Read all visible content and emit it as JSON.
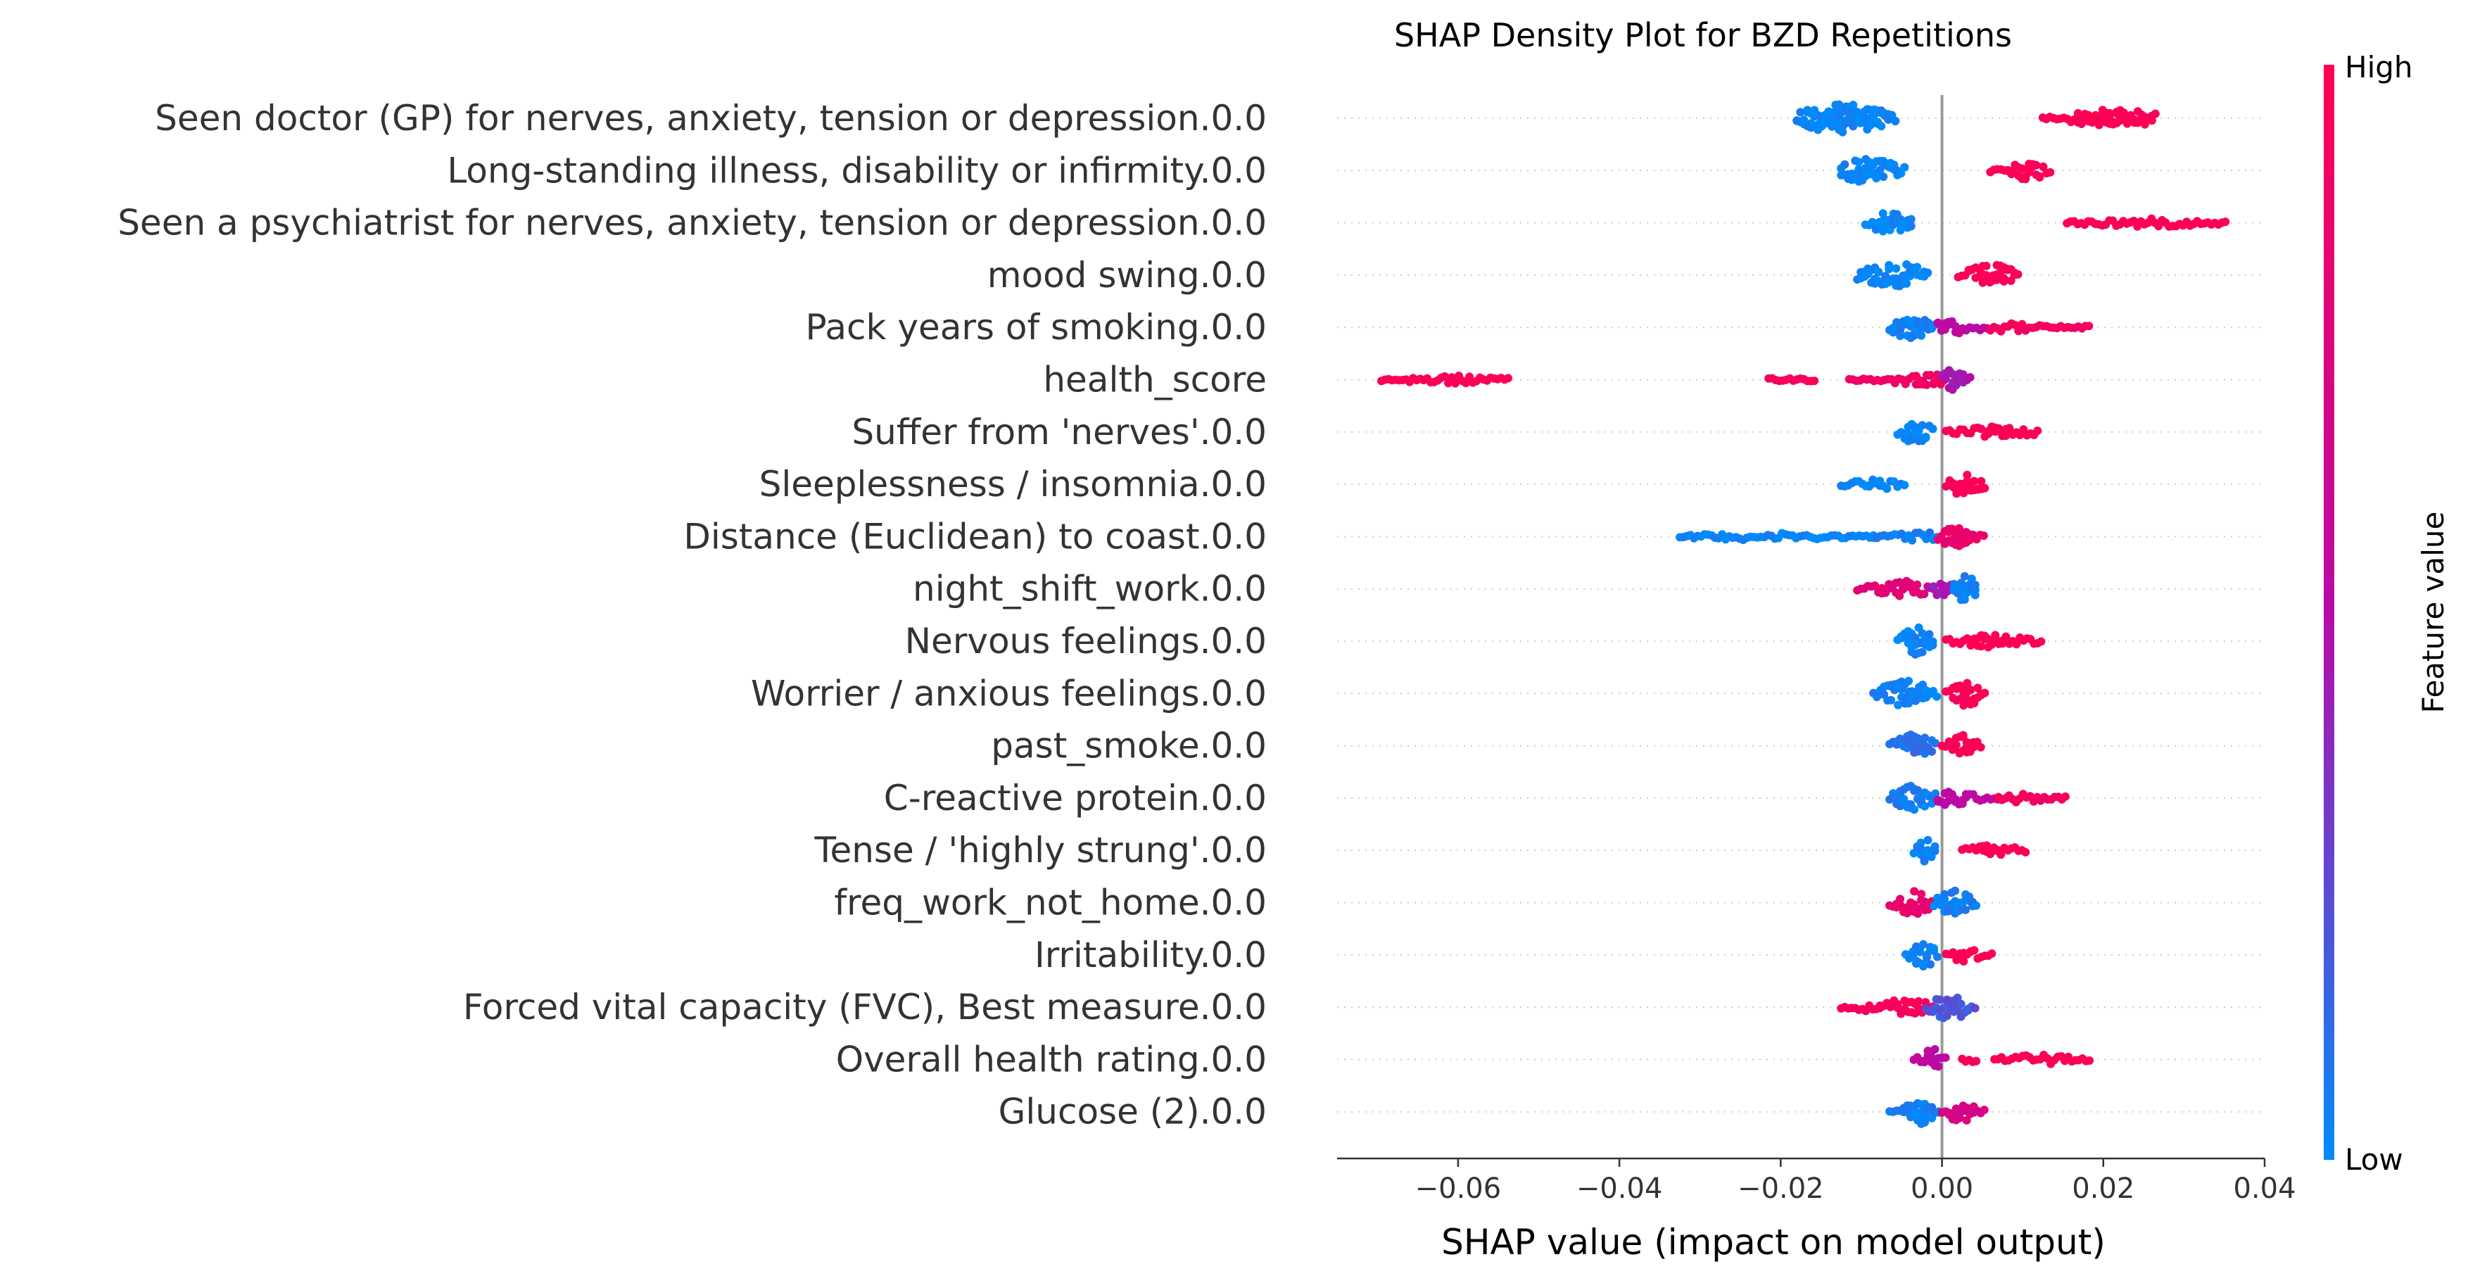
{
  "chart_data": {
    "type": "scatter",
    "title": "SHAP Density Plot for BZD Repetitions",
    "xlabel": "SHAP value (impact on model output)",
    "xlim": [
      -0.075,
      0.04
    ],
    "xticks": [
      -0.06,
      -0.04,
      -0.02,
      0.0,
      0.02,
      0.04
    ],
    "xtick_labels": [
      "−0.06",
      "−0.04",
      "−0.02",
      "0.00",
      "0.02",
      "0.04"
    ],
    "zero_line": 0.0,
    "colorbar": {
      "label": "Feature value",
      "high_label": "High",
      "low_label": "Low",
      "low_color": "#008bfb",
      "mid_color": "#b80aa8",
      "high_color": "#ff0052"
    },
    "features": [
      {
        "name": "Seen doctor (GP) for nerves, anxiety, tension or depression.0.0",
        "clusters": [
          {
            "from": -0.018,
            "to": -0.0055,
            "peak": -0.0125,
            "w": 0.0055,
            "h": 20,
            "f": 0.02
          },
          {
            "from": 0.0125,
            "to": 0.0265,
            "peak": 0.0215,
            "w": 0.0045,
            "h": 13,
            "f": 0.98
          }
        ]
      },
      {
        "name": "Long-standing illness, disability or infirmity.0.0",
        "clusters": [
          {
            "from": -0.0125,
            "to": -0.0045,
            "peak": -0.0092,
            "w": 0.003,
            "h": 17,
            "f": 0.02
          },
          {
            "from": 0.006,
            "to": 0.0135,
            "peak": 0.0105,
            "w": 0.0025,
            "h": 13,
            "f": 0.98
          }
        ]
      },
      {
        "name": "Seen a psychiatrist for nerves, anxiety, tension or depression.0.0",
        "clusters": [
          {
            "from": -0.0095,
            "to": -0.0035,
            "peak": -0.0063,
            "w": 0.0022,
            "h": 15,
            "f": 0.02
          },
          {
            "from": 0.0155,
            "to": 0.0355,
            "peak": 0.025,
            "w": 0.007,
            "h": 6,
            "f": 0.98
          }
        ]
      },
      {
        "name": "mood swing.0.0",
        "clusters": [
          {
            "from": -0.0105,
            "to": -0.0015,
            "peak": -0.006,
            "w": 0.0035,
            "h": 17,
            "f": 0.02
          },
          {
            "from": 0.002,
            "to": 0.0095,
            "peak": 0.0062,
            "w": 0.0025,
            "h": 15,
            "f": 0.98
          }
        ]
      },
      {
        "name": "Pack years of smoking.0.0",
        "clusters": [
          {
            "from": -0.0065,
            "to": -0.0005,
            "peak": -0.0038,
            "w": 0.0018,
            "h": 17,
            "f": 0.05
          },
          {
            "from": -0.0005,
            "to": 0.006,
            "peak": 0.0005,
            "w": 0.0035,
            "h": 9,
            "f": 0.55
          },
          {
            "from": 0.006,
            "to": 0.0185,
            "peak": 0.008,
            "w": 0.004,
            "h": 6,
            "f": 0.92
          }
        ]
      },
      {
        "name": "health_score",
        "clusters": [
          {
            "from": -0.0695,
            "to": -0.0535,
            "peak": -0.061,
            "w": 0.005,
            "h": 6,
            "f": 0.98
          },
          {
            "from": -0.0215,
            "to": -0.0155,
            "peak": -0.019,
            "w": 0.002,
            "h": 4,
            "f": 0.95
          },
          {
            "from": -0.0115,
            "to": 0.0005,
            "peak": -0.002,
            "w": 0.004,
            "h": 8,
            "f": 0.9
          },
          {
            "from": 0.0,
            "to": 0.0035,
            "peak": 0.0015,
            "w": 0.0012,
            "h": 16,
            "f": 0.45
          }
        ]
      },
      {
        "name": "Suffer from 'nerves'.0.0",
        "clusters": [
          {
            "from": -0.0055,
            "to": -0.001,
            "peak": -0.0033,
            "w": 0.0015,
            "h": 18,
            "f": 0.02
          },
          {
            "from": 0.0005,
            "to": 0.012,
            "peak": 0.007,
            "w": 0.004,
            "h": 8,
            "f": 0.98
          }
        ]
      },
      {
        "name": "Sleeplessness / insomnia.0.0",
        "clusters": [
          {
            "from": -0.0125,
            "to": -0.0045,
            "peak": -0.0085,
            "w": 0.0025,
            "h": 8,
            "f": 0.02
          },
          {
            "from": 0.0005,
            "to": 0.0055,
            "peak": 0.003,
            "w": 0.0015,
            "h": 18,
            "f": 0.98
          }
        ]
      },
      {
        "name": "Distance (Euclidean) to coast.0.0",
        "clusters": [
          {
            "from": -0.0325,
            "to": -0.0085,
            "peak": -0.022,
            "w": 0.008,
            "h": 5,
            "f": 0.02
          },
          {
            "from": -0.0085,
            "to": 0.0,
            "peak": -0.003,
            "w": 0.003,
            "h": 7,
            "f": 0.05
          },
          {
            "from": -0.0005,
            "to": 0.0055,
            "peak": 0.0018,
            "w": 0.0015,
            "h": 18,
            "f": 0.85
          }
        ]
      },
      {
        "name": "night_shift_work.0.0",
        "clusters": [
          {
            "from": -0.0105,
            "to": -0.0015,
            "peak": -0.005,
            "w": 0.003,
            "h": 12,
            "f": 0.8
          },
          {
            "from": -0.0015,
            "to": 0.002,
            "peak": 0.0,
            "w": 0.0015,
            "h": 10,
            "f": 0.45
          },
          {
            "from": 0.0015,
            "to": 0.0045,
            "peak": 0.003,
            "w": 0.0012,
            "h": 20,
            "f": 0.03
          }
        ]
      },
      {
        "name": "Nervous feelings.0.0",
        "clusters": [
          {
            "from": -0.0055,
            "to": -0.001,
            "peak": -0.003,
            "w": 0.0015,
            "h": 20,
            "f": 0.02
          },
          {
            "from": 0.0005,
            "to": 0.0125,
            "peak": 0.006,
            "w": 0.004,
            "h": 9,
            "f": 0.98
          }
        ]
      },
      {
        "name": "Worrier / anxious feelings.0.0",
        "clusters": [
          {
            "from": -0.0085,
            "to": -0.0005,
            "peak": -0.0045,
            "w": 0.0025,
            "h": 18,
            "f": 0.03
          },
          {
            "from": 0.0005,
            "to": 0.0055,
            "peak": 0.003,
            "w": 0.0015,
            "h": 18,
            "f": 0.98
          }
        ]
      },
      {
        "name": "past_smoke.0.0",
        "clusters": [
          {
            "from": -0.0065,
            "to": -0.0005,
            "peak": -0.0035,
            "w": 0.002,
            "h": 16,
            "f": 0.1
          },
          {
            "from": 0.0,
            "to": 0.005,
            "peak": 0.0025,
            "w": 0.0015,
            "h": 15,
            "f": 0.98
          }
        ]
      },
      {
        "name": "C-reactive protein.0.0",
        "clusters": [
          {
            "from": -0.0065,
            "to": -0.0005,
            "peak": -0.0035,
            "w": 0.002,
            "h": 18,
            "f": 0.05
          },
          {
            "from": -0.0005,
            "to": 0.007,
            "peak": 0.001,
            "w": 0.003,
            "h": 10,
            "f": 0.55
          },
          {
            "from": 0.007,
            "to": 0.0155,
            "peak": 0.009,
            "w": 0.003,
            "h": 7,
            "f": 0.92
          }
        ]
      },
      {
        "name": "Tense / 'highly strung'.0.0",
        "clusters": [
          {
            "from": -0.0035,
            "to": -0.0005,
            "peak": -0.002,
            "w": 0.001,
            "h": 18,
            "f": 0.02
          },
          {
            "from": 0.0025,
            "to": 0.0105,
            "peak": 0.006,
            "w": 0.003,
            "h": 8,
            "f": 0.98
          }
        ]
      },
      {
        "name": "freq_work_not_home.0.0",
        "clusters": [
          {
            "from": -0.0065,
            "to": -0.001,
            "peak": -0.0035,
            "w": 0.0018,
            "h": 17,
            "f": 0.85
          },
          {
            "from": -0.001,
            "to": 0.0045,
            "peak": 0.0015,
            "w": 0.0018,
            "h": 18,
            "f": 0.05
          }
        ]
      },
      {
        "name": "Irritability.0.0",
        "clusters": [
          {
            "from": -0.0045,
            "to": -0.0005,
            "peak": -0.0022,
            "w": 0.0012,
            "h": 18,
            "f": 0.02
          },
          {
            "from": 0.0005,
            "to": 0.0065,
            "peak": 0.0025,
            "w": 0.0018,
            "h": 10,
            "f": 0.98
          }
        ]
      },
      {
        "name": "Forced vital capacity (FVC), Best measure.0.0",
        "clusters": [
          {
            "from": -0.0125,
            "to": -0.001,
            "peak": -0.005,
            "w": 0.004,
            "h": 10,
            "f": 0.95
          },
          {
            "from": -0.002,
            "to": 0.0045,
            "peak": 0.001,
            "w": 0.0018,
            "h": 18,
            "f": 0.2
          }
        ]
      },
      {
        "name": "Overall health rating.0.0",
        "clusters": [
          {
            "from": -0.0035,
            "to": 0.0005,
            "peak": -0.0015,
            "w": 0.001,
            "h": 18,
            "f": 0.55
          },
          {
            "from": 0.0025,
            "to": 0.0045,
            "peak": 0.0035,
            "w": 0.0008,
            "h": 4,
            "f": 0.98
          },
          {
            "from": 0.0065,
            "to": 0.0185,
            "peak": 0.012,
            "w": 0.004,
            "h": 7,
            "f": 0.98
          }
        ]
      },
      {
        "name": "Glucose (2).0.0",
        "clusters": [
          {
            "from": -0.0065,
            "to": 0.0,
            "peak": -0.0025,
            "w": 0.0018,
            "h": 18,
            "f": 0.05
          },
          {
            "from": 0.0,
            "to": 0.0055,
            "peak": 0.0025,
            "w": 0.0015,
            "h": 15,
            "f": 0.7
          }
        ]
      }
    ]
  }
}
